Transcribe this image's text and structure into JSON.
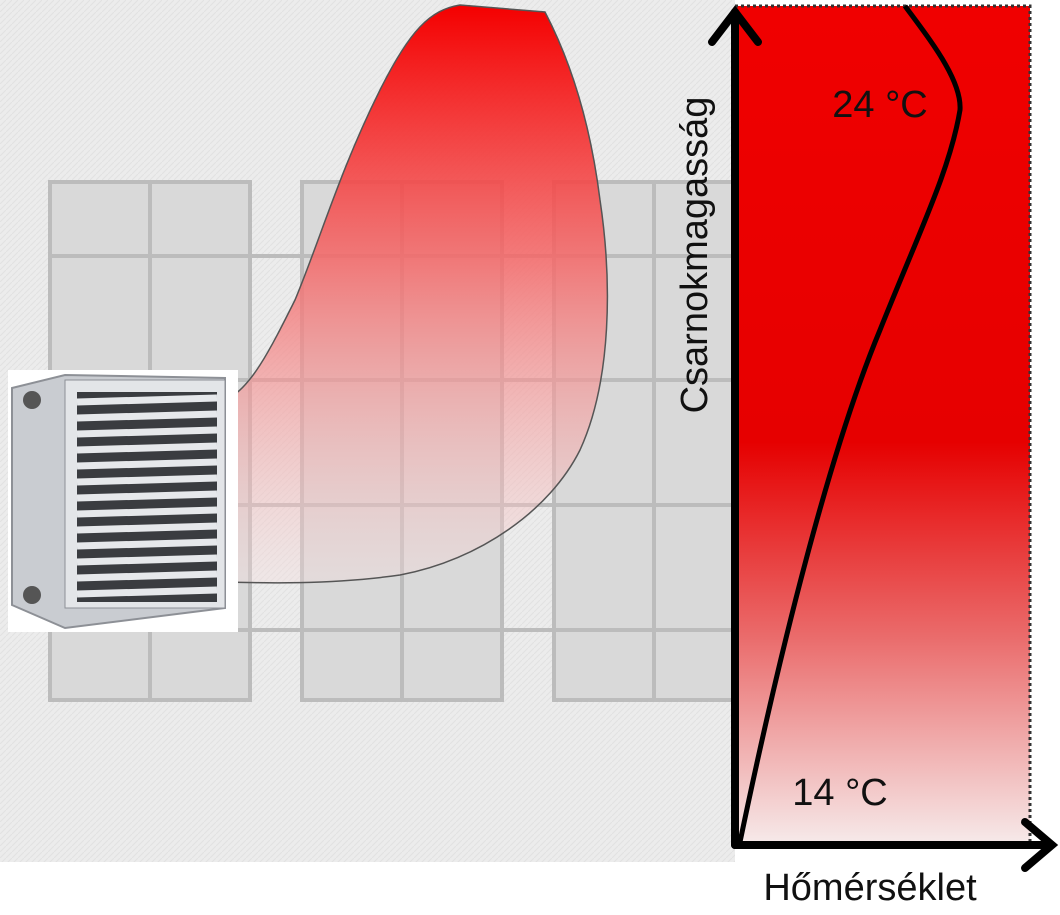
{
  "axes": {
    "y_label": "Csarnokmagasság",
    "x_label": "Hőmérséklet"
  },
  "annotations": {
    "top_temperature": "24 °C",
    "bottom_temperature": "14 °C"
  }
}
